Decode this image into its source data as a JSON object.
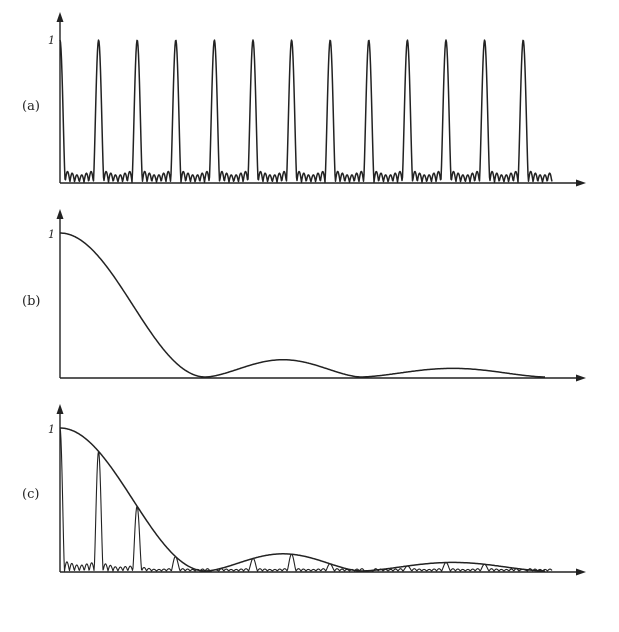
{
  "chart_data": [
    {
      "type": "line",
      "panel_label": "(a)",
      "y_tick": "1",
      "description_series": "periodic sharp principal maxima with small subsidiary oscillations",
      "series": [
        {
          "kind": "periodic_peaks",
          "peak_count": 13,
          "peak_height": 1.0,
          "subsidiary_height": 0.08
        }
      ],
      "ylim": [
        0,
        1
      ]
    },
    {
      "type": "line",
      "panel_label": "(b)",
      "y_tick": "1",
      "series": [
        {
          "kind": "diffraction_envelope",
          "zeros_at_fraction_of_x": [
            0.3,
            0.62
          ],
          "secondary_maxima": [
            0.12,
            0.06
          ]
        }
      ],
      "ylim": [
        0,
        1
      ]
    },
    {
      "type": "line",
      "panel_label": "(c)",
      "y_tick": "1",
      "series": [
        {
          "kind": "envelope",
          "zeros_at_fraction_of_x": [
            0.3,
            0.62
          ]
        },
        {
          "kind": "product_peaks",
          "peak_count": 13
        }
      ],
      "ylim": [
        0,
        1
      ]
    }
  ]
}
